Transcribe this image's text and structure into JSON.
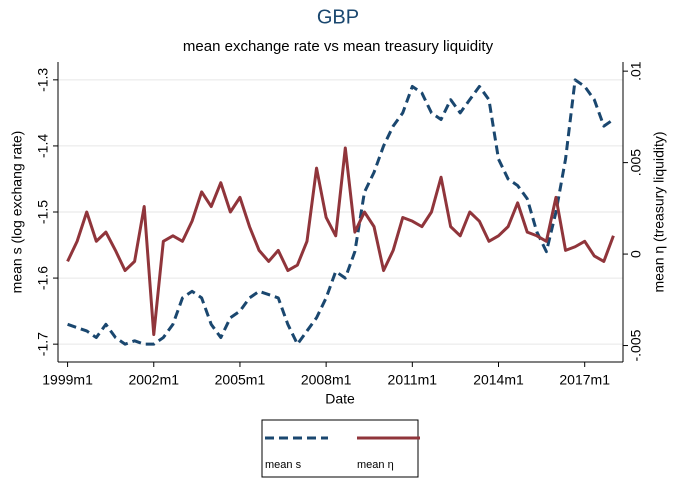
{
  "chart_data": {
    "type": "line",
    "title": "GBP",
    "subtitle": "mean exchange rate vs mean treasury liquidity",
    "x_label": "Date",
    "y_label": "mean s (log exchang rate)",
    "y2_label": "mean η  (treasury liquidity)",
    "x": [
      "1999m1",
      "1999m5",
      "1999m9",
      "2000m1",
      "2000m5",
      "2000m9",
      "2001m1",
      "2001m5",
      "2001m9",
      "2002m1",
      "2002m5",
      "2002m9",
      "2003m1",
      "2003m5",
      "2003m9",
      "2004m1",
      "2004m5",
      "2004m9",
      "2005m1",
      "2005m5",
      "2005m9",
      "2006m1",
      "2006m5",
      "2006m9",
      "2007m1",
      "2007m5",
      "2007m9",
      "2008m1",
      "2008m5",
      "2008m9",
      "2009m1",
      "2009m5",
      "2009m9",
      "2010m1",
      "2010m5",
      "2010m9",
      "2011m1",
      "2011m5",
      "2011m9",
      "2012m1",
      "2012m5",
      "2012m9",
      "2013m1",
      "2013m5",
      "2013m9",
      "2014m1",
      "2014m5",
      "2014m9",
      "2015m1",
      "2015m5",
      "2015m9",
      "2016m1",
      "2016m5",
      "2016m9",
      "2017m1",
      "2017m5",
      "2017m9",
      "2018m1"
    ],
    "series": [
      {
        "name": "mean s",
        "color": "#1a476f",
        "dash": true,
        "values": [
          -1.67,
          -1.675,
          -1.68,
          -1.69,
          -1.67,
          -1.69,
          -1.7,
          -1.695,
          -1.7,
          -1.7,
          -1.69,
          -1.67,
          -1.63,
          -1.62,
          -1.63,
          -1.67,
          -1.69,
          -1.66,
          -1.65,
          -1.63,
          -1.62,
          -1.625,
          -1.63,
          -1.67,
          -1.7,
          -1.68,
          -1.66,
          -1.63,
          -1.59,
          -1.6,
          -1.56,
          -1.47,
          -1.44,
          -1.4,
          -1.37,
          -1.35,
          -1.31,
          -1.32,
          -1.35,
          -1.36,
          -1.33,
          -1.35,
          -1.33,
          -1.31,
          -1.33,
          -1.42,
          -1.45,
          -1.46,
          -1.48,
          -1.53,
          -1.56,
          -1.5,
          -1.42,
          -1.3,
          -1.31,
          -1.33,
          -1.37,
          -1.36
        ]
      },
      {
        "name": "mean η",
        "color": "#90353b",
        "dash": false,
        "axis": "y2",
        "values": [
          -0.0004,
          0.0007,
          0.0023,
          0.0007,
          0.0012,
          0.0002,
          -0.0009,
          -0.0004,
          0.0026,
          -0.0044,
          0.0007,
          0.001,
          0.0007,
          0.0018,
          0.0034,
          0.0026,
          0.0039,
          0.0023,
          0.0031,
          0.0015,
          0.0002,
          -0.0004,
          0.0002,
          -0.0009,
          -0.0006,
          0.0007,
          0.0047,
          0.002,
          0.001,
          0.0058,
          0.0012,
          0.0023,
          0.0015,
          -0.0009,
          0.0002,
          0.002,
          0.0018,
          0.0015,
          0.0023,
          0.0042,
          0.0015,
          0.001,
          0.0023,
          0.0018,
          0.0007,
          0.001,
          0.0015,
          0.0028,
          0.0012,
          0.001,
          0.0007,
          0.0031,
          0.0002,
          0.0004,
          0.0007,
          -0.0001,
          -0.0004,
          0.001
        ]
      }
    ],
    "xlim": [
      "1998m9",
      "2018m5"
    ],
    "xticks": [
      "1999m1",
      "2002m1",
      "2005m1",
      "2008m1",
      "2011m1",
      "2014m1",
      "2017m1"
    ],
    "ylim": [
      -1.727,
      -1.273
    ],
    "yticks": [
      -1.3,
      -1.4,
      -1.5,
      -1.6,
      -1.7
    ],
    "y2lim": [
      -0.0059,
      0.0105
    ],
    "y2ticks": [
      {
        "value": 0.01,
        "label": ".01"
      },
      {
        "value": 0.005,
        "label": ".005"
      },
      0,
      {
        "value": -0.005,
        "label": "-.005"
      }
    ],
    "grid": true,
    "legend": "bottom"
  }
}
